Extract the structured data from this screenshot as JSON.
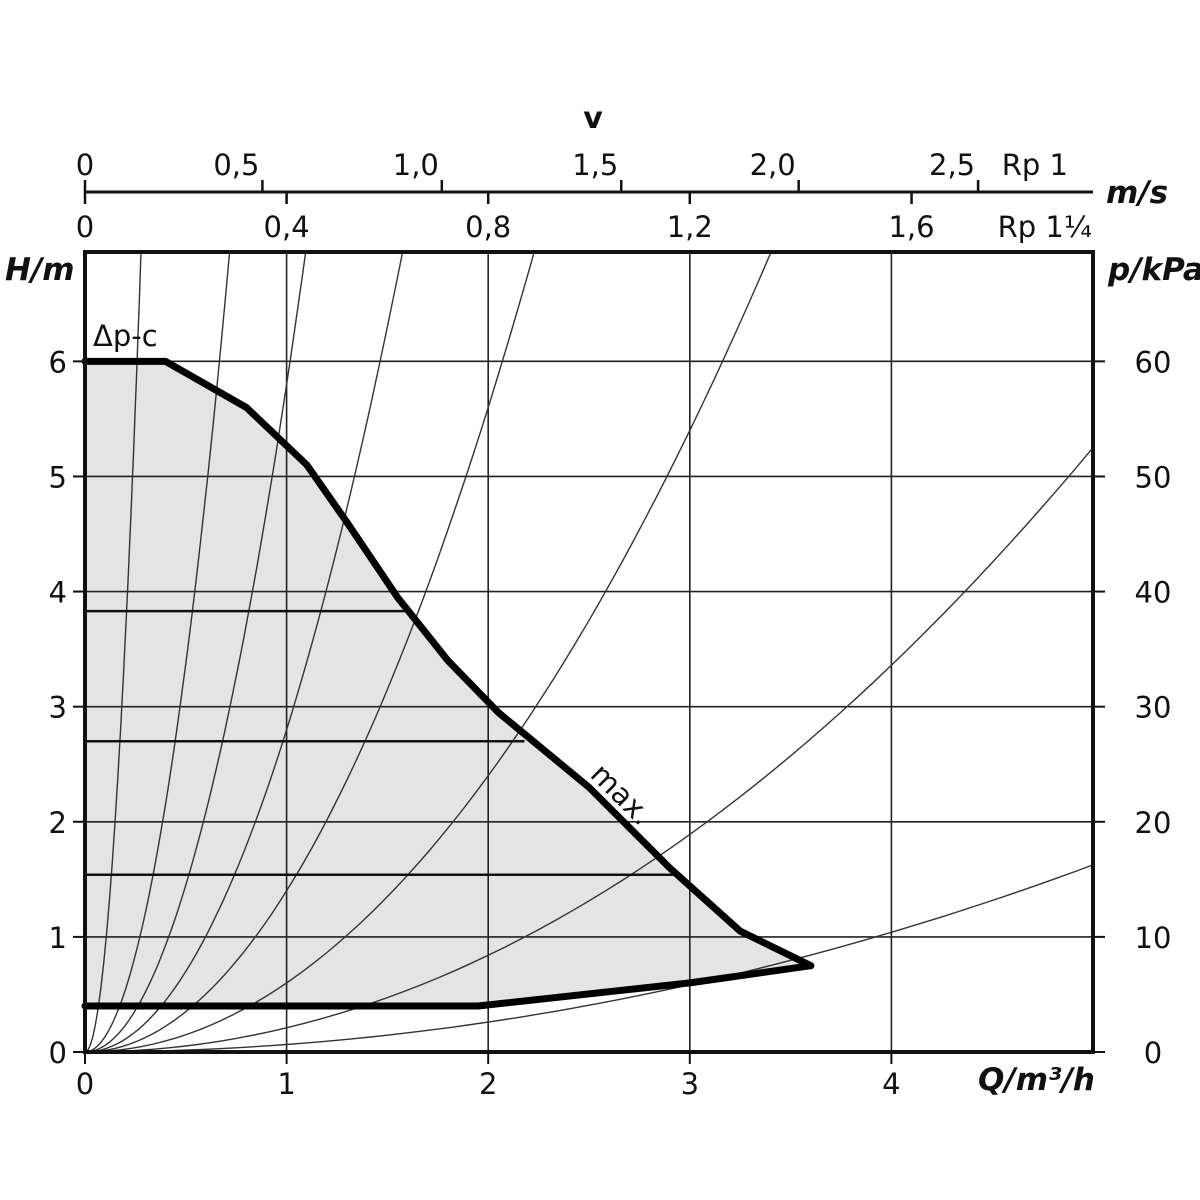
{
  "chart_data": {
    "type": "line",
    "xlabel": "Q/m³/h",
    "ylabel_left": "H/m",
    "ylabel_right": "p/kPa",
    "x_ticks": [
      "0",
      "1",
      "2",
      "3",
      "4"
    ],
    "y_ticks": [
      "0",
      "1",
      "2",
      "3",
      "4",
      "5",
      "6"
    ],
    "y_right_ticks": [
      "0",
      "10",
      "20",
      "30",
      "40",
      "50",
      "60"
    ],
    "xlim": [
      0,
      5
    ],
    "ylim": [
      0,
      6.95
    ],
    "grid": true,
    "velocity_axis": {
      "title": "v",
      "unit": "m/s",
      "rp1_label": "Rp 1",
      "rp1_ticks": [
        {
          "label": "0",
          "q": 0
        },
        {
          "label": "0,5",
          "q": 0.88
        },
        {
          "label": "1,0",
          "q": 1.77
        },
        {
          "label": "1,5",
          "q": 2.66
        },
        {
          "label": "2,0",
          "q": 3.54
        },
        {
          "label": "2,5",
          "q": 4.43
        }
      ],
      "rp114_label": "Rp 1¼",
      "rp114_ticks": [
        {
          "label": "0",
          "q": 0
        },
        {
          "label": "0,4",
          "q": 1.0
        },
        {
          "label": "0,8",
          "q": 2.0
        },
        {
          "label": "1,2",
          "q": 3.0
        },
        {
          "label": "1,6",
          "q": 4.1
        }
      ]
    },
    "annotations": [
      {
        "text": "Δp-c",
        "q": 0.12,
        "h": 6.15
      },
      {
        "text": "max.",
        "q": 2.5,
        "h": 2.4
      }
    ],
    "max_curve": [
      [
        0,
        6.0
      ],
      [
        0.4,
        6.0
      ],
      [
        0.8,
        5.6
      ],
      [
        1.1,
        5.1
      ],
      [
        1.3,
        4.6
      ],
      [
        1.55,
        3.95
      ],
      [
        1.8,
        3.4
      ],
      [
        2.05,
        2.95
      ],
      [
        2.5,
        2.3
      ],
      [
        2.9,
        1.6
      ],
      [
        3.25,
        1.05
      ],
      [
        3.6,
        0.75
      ]
    ],
    "min_curve": [
      [
        0,
        0.4
      ],
      [
        1.95,
        0.4
      ],
      [
        3.0,
        0.6
      ],
      [
        3.6,
        0.75
      ]
    ],
    "speed_steps": [
      {
        "h": 3.83,
        "q_end": 1.6
      },
      {
        "h": 2.7,
        "q_end": 2.18
      },
      {
        "h": 1.54,
        "q_end": 2.93
      }
    ],
    "system_curve_coefficients": [
      90,
      13.5,
      5.8,
      2.8,
      1.4,
      0.6,
      0.21,
      0.065
    ]
  }
}
